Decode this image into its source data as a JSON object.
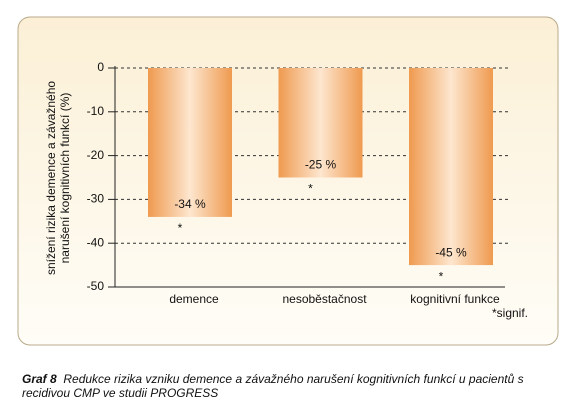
{
  "chart_data": {
    "type": "bar",
    "ylabel": [
      "snížení rizika demence a závažného",
      "narušení kognitivních funkcí (%)"
    ],
    "categories": [
      "demence",
      "nesoběstačnost",
      "kognitivní funkce"
    ],
    "values": [
      -34,
      -25,
      -45
    ],
    "value_labels": [
      "-34 %",
      "-25 %",
      "-45 %"
    ],
    "significance_marks": [
      "*",
      "*",
      "*"
    ],
    "footnote": "*signif.",
    "ylim": [
      -50,
      0
    ],
    "yticks": [
      0,
      -10,
      -20,
      -30,
      -40,
      -50
    ],
    "grid": true
  },
  "caption_label": "Graf 8",
  "caption": "Redukce rizika vzniku demence a závažného narušení kognitivních funkcí u pacientů s recidivou CMP ve studii PROGRESS"
}
